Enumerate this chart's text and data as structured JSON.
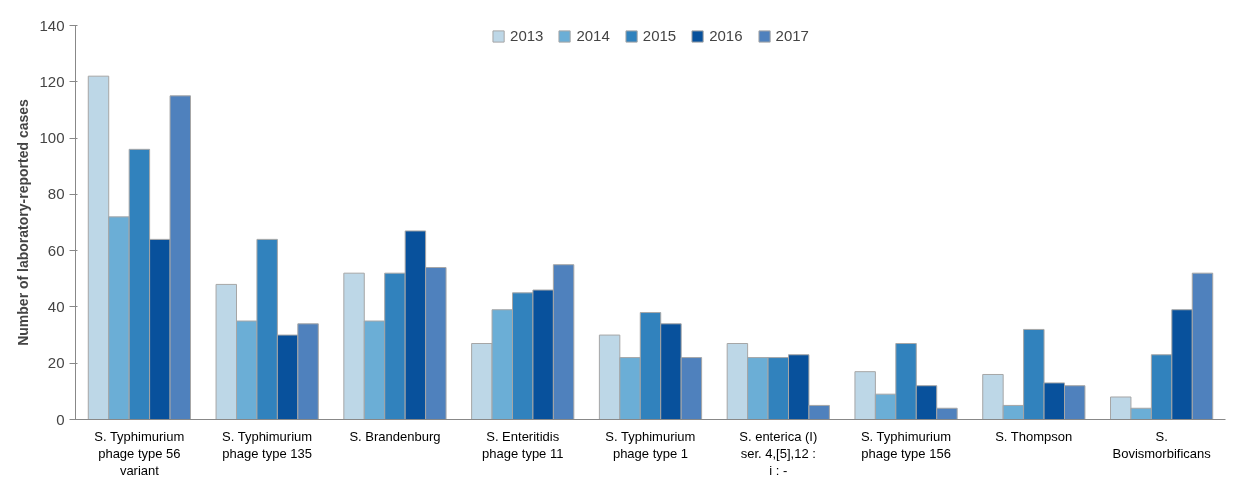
{
  "chart_data": {
    "type": "bar",
    "ylabel": "Number of laboratory-reported cases",
    "categories": [
      "S. Typhimurium phage type 56 variant",
      "S. Typhimurium phage type 135",
      "S. Brandenburg",
      "S. Enteritidis phage type 11",
      "S. Typhimurium phage type 1",
      "S. enterica (I) ser. 4,[5],12 : i : -",
      "S. Typhimurium phage type 156",
      "S. Thompson",
      "S. Bovismorbificans"
    ],
    "series": [
      {
        "name": "2013",
        "color": "#bdd7e7",
        "values": [
          122,
          48,
          52,
          27,
          30,
          27,
          17,
          16,
          8
        ]
      },
      {
        "name": "2014",
        "color": "#6baed6",
        "values": [
          72,
          35,
          35,
          39,
          22,
          22,
          9,
          5,
          4
        ]
      },
      {
        "name": "2015",
        "color": "#3182bd",
        "values": [
          96,
          64,
          52,
          45,
          38,
          22,
          27,
          32,
          23
        ]
      },
      {
        "name": "2016",
        "color": "#08519c",
        "values": [
          64,
          30,
          67,
          46,
          34,
          23,
          12,
          13,
          39
        ]
      },
      {
        "name": "2017",
        "color": "#4f81bd",
        "values": [
          115,
          34,
          54,
          55,
          22,
          5,
          4,
          12,
          52
        ]
      }
    ],
    "ylim": [
      0,
      140
    ],
    "yticks": [
      0,
      20,
      40,
      60,
      80,
      100,
      120,
      140
    ],
    "grid": false,
    "legend": "top"
  }
}
